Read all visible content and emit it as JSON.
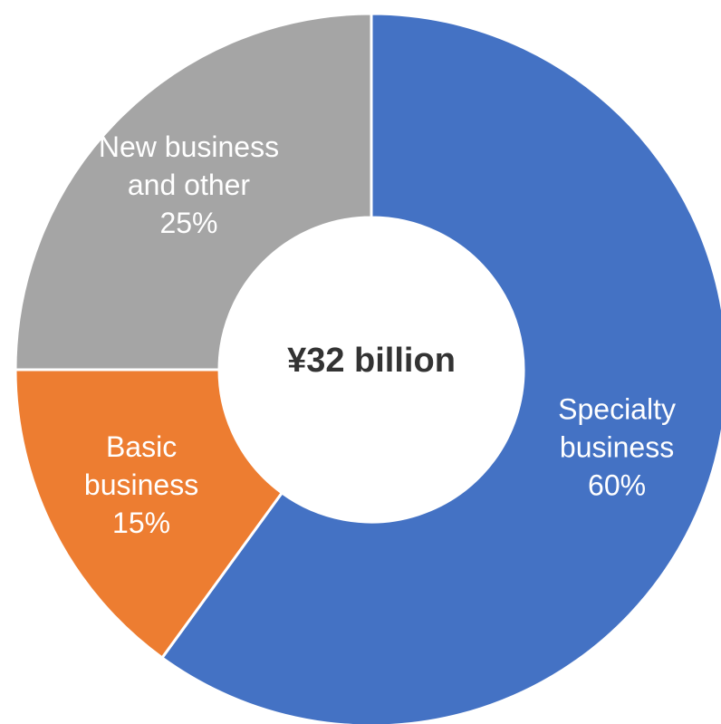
{
  "chart_data": {
    "type": "pie",
    "variant": "donut",
    "center_label": "¥32 billion",
    "slices": [
      {
        "name": "Specialty business",
        "label_lines": [
          "Specialty",
          "business"
        ],
        "value": 60,
        "value_label": "60%",
        "color": "#4472C4"
      },
      {
        "name": "Basic business",
        "label_lines": [
          "Basic",
          "business"
        ],
        "value": 15,
        "value_label": "15%",
        "color": "#ED7D31"
      },
      {
        "name": "New business and other",
        "label_lines": [
          "New business",
          "and other"
        ],
        "value": 25,
        "value_label": "25%",
        "color": "#A5A5A5"
      }
    ],
    "start_angle": "top",
    "direction": "clockwise",
    "legend": "none",
    "label_color": "#FFFFFF",
    "center_label_color": "#333333"
  }
}
